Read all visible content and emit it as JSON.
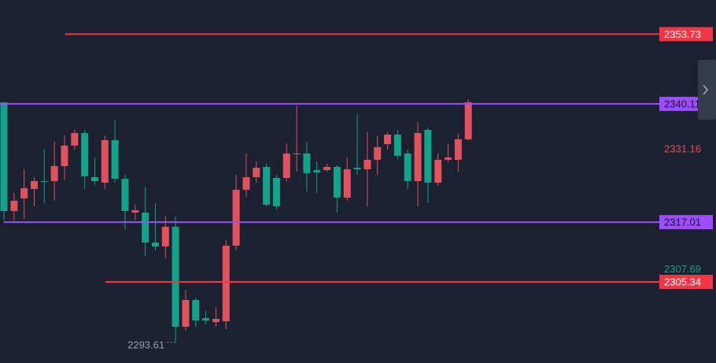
{
  "chart_data": {
    "type": "candlestick",
    "ylim": [
      2289.5,
      2360.4
    ],
    "up_color": "#e0525e",
    "down_color": "#12a38a",
    "open": [
      2340.42,
      2319.19,
      2321.65,
      2323.49,
      2325.03,
      2325.03,
      2327.96,
      2331.96,
      2334.42,
      2325.8,
      2324.72,
      2333.03,
      2325.49,
      2318.88,
      2318.88,
      2313.03,
      2312.26,
      2316.11,
      2296.57,
      2301.8,
      2298.26,
      2297.49,
      2297.65,
      2312.42,
      2323.34,
      2325.8,
      2327.8,
      2325.65,
      2325.65,
      2330.26,
      2330.42,
      2327.19,
      2327.19,
      2327.8,
      2321.8,
      2327.65,
      2327.34,
      2329.19,
      2332.26,
      2334.11,
      2330.42,
      2325.03,
      2335.03,
      2324.72,
      2329.19,
      2329.19,
      2333.19
    ],
    "high": [
      2340.42,
      2322.73,
      2327.34,
      2325.8,
      2331.19,
      2332.73,
      2333.96,
      2335.03,
      2335.03,
      2329.65,
      2333.96,
      2337.03,
      2326.26,
      2320.42,
      2323.8,
      2320.73,
      2318.11,
      2318.11,
      2303.8,
      2302.26,
      2299.65,
      2300.42,
      2313.49,
      2326.26,
      2330.42,
      2328.88,
      2328.42,
      2326.26,
      2332.42,
      2339.8,
      2332.73,
      2328.88,
      2328.42,
      2328.11,
      2329.65,
      2338.11,
      2334.57,
      2333.96,
      2334.57,
      2335.03,
      2331.19,
      2336.57,
      2335.5,
      2330.42,
      2332.26,
      2334.26,
      2341.03
    ],
    "low": [
      2317.34,
      2317.34,
      2317.65,
      2320.11,
      2320.73,
      2321.19,
      2325.34,
      2331.19,
      2323.49,
      2324.26,
      2323.49,
      2324.72,
      2315.49,
      2317.34,
      2310.42,
      2311.49,
      2309.96,
      2293.61,
      2295.8,
      2296.57,
      2297.03,
      2296.57,
      2296.11,
      2311.49,
      2321.96,
      2324.72,
      2320.11,
      2319.49,
      2325.03,
      2326.88,
      2323.03,
      2322.73,
      2326.88,
      2318.88,
      2321.19,
      2326.26,
      2320.11,
      2326.26,
      2331.19,
      2329.34,
      2323.49,
      2320.11,
      2320.73,
      2324.11,
      2328.72,
      2326.88,
      2333.03
    ],
    "close": [
      2319.19,
      2321.19,
      2323.65,
      2325.03,
      2324.88,
      2327.96,
      2331.96,
      2334.42,
      2325.96,
      2325.03,
      2333.03,
      2325.49,
      2319.19,
      2319.34,
      2313.03,
      2312.26,
      2316.11,
      2296.57,
      2301.8,
      2297.8,
      2297.8,
      2298.11,
      2312.42,
      2323.34,
      2325.8,
      2327.65,
      2320.42,
      2320.11,
      2330.42,
      2330.42,
      2326.57,
      2326.73,
      2327.8,
      2321.8,
      2327.34,
      2327.34,
      2329.19,
      2331.65,
      2334.11,
      2329.96,
      2325.03,
      2334.42,
      2324.72,
      2329.19,
      2329.65,
      2333.19,
      2340.42
    ],
    "levels": [
      {
        "value": 2353.73,
        "color": "#f23645"
      },
      {
        "value": 2340.11,
        "color": "#9c4dff"
      },
      {
        "value": 2317.01,
        "color": "#9c4dff"
      },
      {
        "value": 2305.34,
        "color": "#f23645"
      }
    ],
    "price_labels": [
      {
        "value": 2331.16,
        "color": "#e0525e"
      },
      {
        "value": 2307.69,
        "color": "#12a38a"
      }
    ]
  }
}
